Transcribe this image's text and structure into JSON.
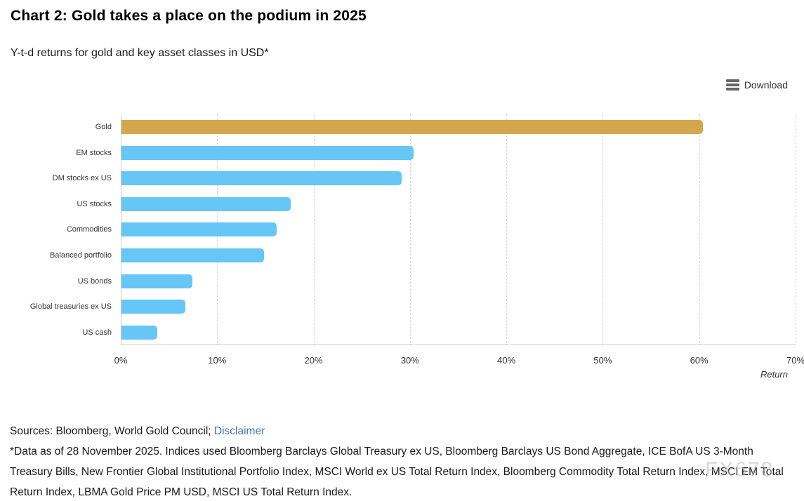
{
  "header": {
    "title": "Chart 2: Gold takes a place on the podium in 2025",
    "subtitle": "Y-t-d returns for gold and key asset classes in USD*"
  },
  "toolbar": {
    "download_label": "Download"
  },
  "chart_data": {
    "type": "bar",
    "orientation": "horizontal",
    "title": "Chart 2: Gold takes a place on the podium in 2025",
    "subtitle": "Y-t-d returns for gold and key asset classes in USD*",
    "categories": [
      "Gold",
      "EM stocks",
      "DM stocks ex US",
      "US stocks",
      "Commodities",
      "Balanced portfolio",
      "US bonds",
      "Global treasuries ex US",
      "US cash"
    ],
    "values": [
      60.4,
      30.3,
      29.1,
      17.6,
      16.1,
      14.8,
      7.4,
      6.6,
      3.7
    ],
    "unit": "%",
    "xlabel": "Return",
    "ylabel": "",
    "xlim": [
      0,
      70
    ],
    "x_ticks": [
      "0%",
      "10%",
      "20%",
      "30%",
      "40%",
      "50%",
      "60%",
      "70%"
    ],
    "grid": "vertical-dotted",
    "highlight_index": 0,
    "colors": {
      "highlight": "#D3A84C",
      "default": "#66C6F5",
      "axis": "#cccccc",
      "grid": "#cccccc"
    }
  },
  "footer": {
    "sources": "Sources: Bloomberg, World Gold Council;",
    "disclaimer": "Disclaimer",
    "footnote": "*Data as of 28 November 2025. Indices used Bloomberg Barclays Global Treasury ex US, Bloomberg Barclays US Bond Aggregate, ICE BofA US 3-Month Treasury Bills, New Frontier Global Institutional Portfolio Index, MSCI World ex US Total Return Index, Bloomberg Commodity Total Return Index, MSCI EM Total Return Index, LBMA Gold Price PM USD, MSCI US Total Return Index."
  },
  "watermark": "FX678"
}
